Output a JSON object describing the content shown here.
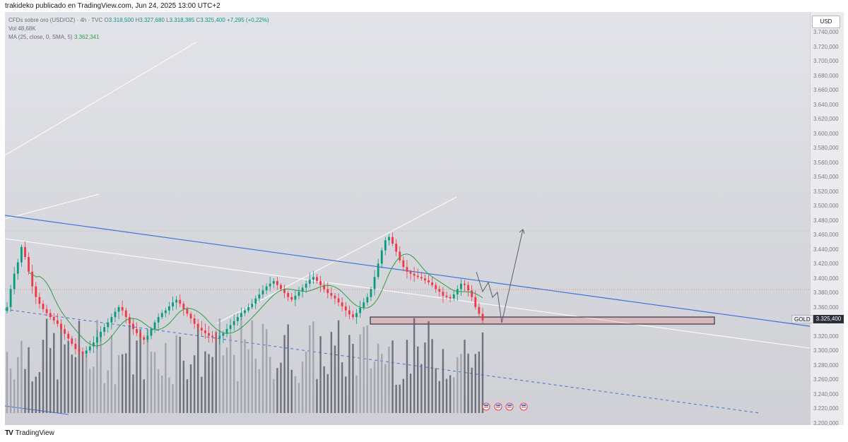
{
  "header": {
    "published": "trakideko publicado en TradingView.com, Jun 24, 2025 13:00 UTC+2"
  },
  "legend": {
    "symbol": "CFDs sobre oro (USD/OZ) · 4h · TVC",
    "open_label": "O",
    "open": "3.318,500",
    "high_label": "H",
    "high": "3.327,680",
    "low_label": "L",
    "low": "3.318,385",
    "close_label": "C",
    "close": "3.325,400",
    "change": "+7,295 (+0,22%)",
    "volume_label": "Vol",
    "volume": "48,68K",
    "ma_label": "MA (25, close, 0, SMA, 5)",
    "ma_value": "3.362,341"
  },
  "price_axis": {
    "currency": "USD",
    "ticks": [
      "3.740,000",
      "3.720,000",
      "3.700,000",
      "3.680,000",
      "3.660,000",
      "3.640,000",
      "3.620,000",
      "3.600,000",
      "3.580,000",
      "3.560,000",
      "3.540,000",
      "3.520,000",
      "3.500,000",
      "3.480,000",
      "3.460,000",
      "3.440,000",
      "3.420,000",
      "3.400,000",
      "3.380,000",
      "3.360,000",
      "3.340,000",
      "3.320,000",
      "3.300,000",
      "3.280,000",
      "3.260,000",
      "3.240,000",
      "3.220,000",
      "3.200,000"
    ]
  },
  "price_tag": {
    "symbol": "GOLD",
    "value": "3.325,400"
  },
  "footer": {
    "brand": "TradingView"
  },
  "colors": {
    "up": "#089981",
    "down": "#f23645",
    "ma": "#2f9e44",
    "trend_blue": "#3d6fd9",
    "channel": "#ffffff"
  },
  "chart_data": {
    "type": "candlestick",
    "timeframe": "4h",
    "yrange": [
      3200,
      3750
    ],
    "last_price": 3325.4,
    "close_series": [
      3345,
      3372,
      3395,
      3412,
      3435,
      3420,
      3398,
      3376,
      3360,
      3350,
      3342,
      3336,
      3330,
      3325,
      3320,
      3312,
      3305,
      3298,
      3290,
      3282,
      3278,
      3275,
      3280,
      3286,
      3292,
      3300,
      3308,
      3315,
      3322,
      3330,
      3338,
      3345,
      3340,
      3330,
      3320,
      3312,
      3306,
      3300,
      3296,
      3302,
      3312,
      3322,
      3330,
      3336,
      3340,
      3346,
      3352,
      3356,
      3350,
      3342,
      3335,
      3328,
      3320,
      3314,
      3310,
      3306,
      3302,
      3300,
      3298,
      3302,
      3306,
      3312,
      3318,
      3324,
      3330,
      3336,
      3340,
      3345,
      3350,
      3358,
      3364,
      3370,
      3376,
      3380,
      3384,
      3378,
      3372,
      3366,
      3360,
      3356,
      3362,
      3368,
      3374,
      3380,
      3386,
      3390,
      3384,
      3378,
      3372,
      3366,
      3362,
      3358,
      3352,
      3346,
      3340,
      3334,
      3330,
      3336,
      3344,
      3352,
      3360,
      3372,
      3390,
      3410,
      3430,
      3445,
      3450,
      3440,
      3428,
      3415,
      3405,
      3398,
      3395,
      3392,
      3390,
      3388,
      3385,
      3382,
      3378,
      3372,
      3368,
      3362,
      3360,
      3358,
      3364,
      3372,
      3380,
      3378,
      3370,
      3360,
      3345,
      3335,
      3325
    ],
    "volume_max_note": "relative"
  }
}
